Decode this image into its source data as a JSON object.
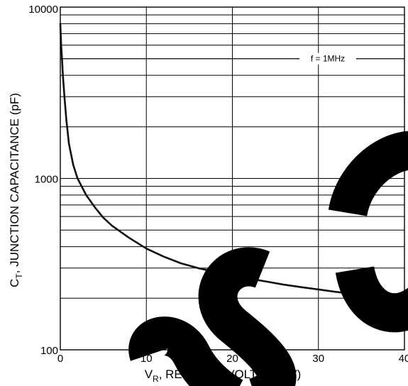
{
  "chart_data": {
    "type": "line",
    "title": "",
    "xlabel": "V_R, REVERSE VOLTAGE (V)",
    "xlabel_parts": {
      "main": "V",
      "sub": "R",
      "rest": ", REVERSE VOLTAGE (V)"
    },
    "ylabel": "C_T, JUNCTION CAPACITANCE (pF)",
    "ylabel_parts": {
      "main": "C",
      "sub": "T",
      "rest": ", JUNCTION CAPACITANCE (pF)"
    },
    "xlim": [
      0,
      40
    ],
    "ylim": [
      100,
      10000
    ],
    "yscale": "log",
    "grid": true,
    "x_ticks": [
      0,
      10,
      20,
      30,
      40
    ],
    "x_tick_labels": [
      "0",
      "10",
      "20",
      "30",
      "40"
    ],
    "y_ticks": [
      100,
      1000,
      10000
    ],
    "y_tick_labels": [
      "100",
      "1000",
      "10000"
    ],
    "annotation": "f = 1MHz",
    "series": [
      {
        "x": [
          0,
          0.1,
          0.2,
          0.3,
          0.5,
          0.7,
          1,
          1.5,
          2,
          3,
          4,
          5,
          6,
          8,
          10,
          12,
          14,
          16,
          18,
          20,
          22,
          24,
          26,
          28,
          30,
          32,
          35,
          40
        ],
        "y": [
          8000,
          6000,
          5000,
          4000,
          2900,
          2200,
          1600,
          1200,
          1000,
          800,
          680,
          590,
          530,
          450,
          390,
          350,
          320,
          300,
          285,
          270,
          260,
          250,
          240,
          232,
          225,
          218,
          210,
          203
        ]
      }
    ]
  }
}
